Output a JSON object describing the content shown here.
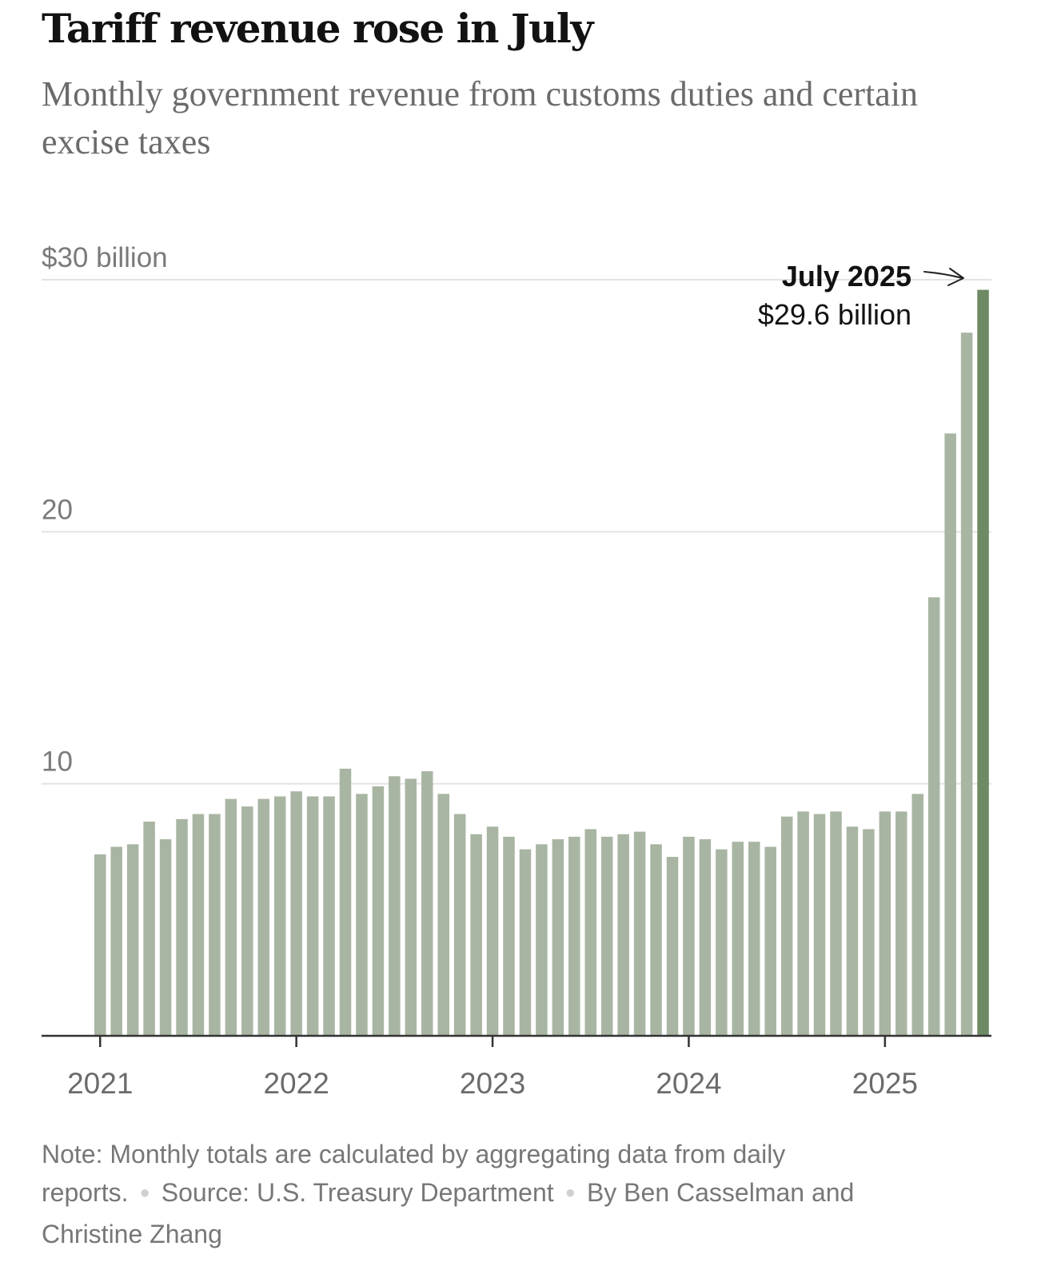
{
  "title": "Tariff revenue rose in July",
  "subtitle": "Monthly government revenue from customs duties and certain excise taxes",
  "annotation": {
    "label": "July 2025",
    "value": "$29.6 billion"
  },
  "footer": {
    "note": "Note: Monthly totals are calculated by aggregating data from daily reports.",
    "source": "Source: U.S. Treasury Department",
    "byline": "By Ben Casselman and Christine Zhang"
  },
  "colors": {
    "bar": "#a9b5a3",
    "highlight": "#6e8a64",
    "grid": "#e3e3e3",
    "axis": "#333333"
  },
  "chart_data": {
    "type": "bar",
    "title": "Tariff revenue rose in July",
    "subtitle": "Monthly government revenue from customs duties and certain excise taxes",
    "ylim": [
      0,
      30
    ],
    "yticks": [
      {
        "value": 30,
        "label": "$30 billion"
      },
      {
        "value": 20,
        "label": "20"
      },
      {
        "value": 10,
        "label": "10"
      }
    ],
    "xticks": [
      {
        "index": 0,
        "label": "2021"
      },
      {
        "index": 12,
        "label": "2022"
      },
      {
        "index": 24,
        "label": "2023"
      },
      {
        "index": 36,
        "label": "2024"
      },
      {
        "index": 48,
        "label": "2025"
      }
    ],
    "grid": true,
    "highlight_index": 54,
    "categories": [
      "2021-01",
      "2021-02",
      "2021-03",
      "2021-04",
      "2021-05",
      "2021-06",
      "2021-07",
      "2021-08",
      "2021-09",
      "2021-10",
      "2021-11",
      "2021-12",
      "2022-01",
      "2022-02",
      "2022-03",
      "2022-04",
      "2022-05",
      "2022-06",
      "2022-07",
      "2022-08",
      "2022-09",
      "2022-10",
      "2022-11",
      "2022-12",
      "2023-01",
      "2023-02",
      "2023-03",
      "2023-04",
      "2023-05",
      "2023-06",
      "2023-07",
      "2023-08",
      "2023-09",
      "2023-10",
      "2023-11",
      "2023-12",
      "2024-01",
      "2024-02",
      "2024-03",
      "2024-04",
      "2024-05",
      "2024-06",
      "2024-07",
      "2024-08",
      "2024-09",
      "2024-10",
      "2024-11",
      "2024-12",
      "2025-01",
      "2025-02",
      "2025-03",
      "2025-04",
      "2025-05",
      "2025-06",
      "2025-07"
    ],
    "values": [
      7.2,
      7.5,
      7.6,
      8.5,
      7.8,
      8.6,
      8.8,
      8.8,
      9.4,
      9.1,
      9.4,
      9.5,
      9.7,
      9.5,
      9.5,
      10.6,
      9.6,
      9.9,
      10.3,
      10.2,
      10.5,
      9.6,
      8.8,
      8.0,
      8.3,
      7.9,
      7.4,
      7.6,
      7.8,
      7.9,
      8.2,
      7.9,
      8.0,
      8.1,
      7.6,
      7.1,
      7.9,
      7.8,
      7.4,
      7.7,
      7.7,
      7.5,
      8.7,
      8.9,
      8.8,
      8.9,
      8.3,
      8.2,
      8.9,
      8.9,
      9.6,
      17.4,
      23.9,
      27.9,
      29.6
    ]
  }
}
